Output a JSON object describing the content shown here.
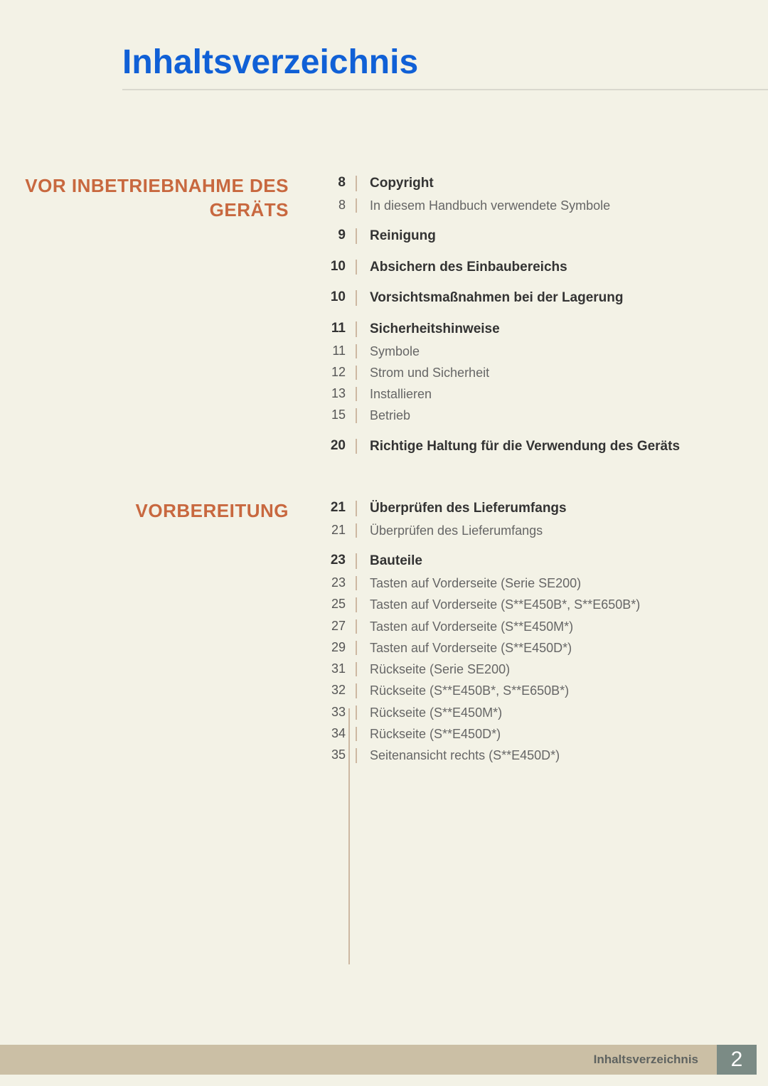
{
  "colors": {
    "page_bg": "#f3f2e6",
    "outer_bg": "#928d79",
    "title_color": "#1060d6",
    "section_color": "#c8683f",
    "vline_color": "#cdb8a2",
    "hr_color": "#d9d8ce",
    "text_bold": "#333333",
    "text_normal": "#666666",
    "footer_strip": "#cbbfa5",
    "footer_box": "#7b8b85",
    "footer_text": "#5f6360"
  },
  "typography": {
    "title_size": 48,
    "section_size": 26,
    "entry_bold_size": 19,
    "entry_normal_size": 18,
    "footer_label_size": 17,
    "footer_pagenum_size": 30
  },
  "title": "Inhaltsverzeichnis",
  "footer": {
    "label": "Inhaltsverzeichnis",
    "page": "2"
  },
  "sections": [
    {
      "heading": "VOR INBETRIEBNAHME DES GERÄTS",
      "groups": [
        {
          "entries": [
            {
              "page": "8",
              "label": "Copyright",
              "bold": true
            },
            {
              "page": "8",
              "label": "In diesem Handbuch verwendete Symbole",
              "bold": false
            }
          ]
        },
        {
          "entries": [
            {
              "page": "9",
              "label": "Reinigung",
              "bold": true
            }
          ]
        },
        {
          "entries": [
            {
              "page": "10",
              "label": "Absichern des Einbaubereichs",
              "bold": true
            }
          ]
        },
        {
          "entries": [
            {
              "page": "10",
              "label": "Vorsichtsmaßnahmen bei der Lagerung",
              "bold": true
            }
          ]
        },
        {
          "entries": [
            {
              "page": "11",
              "label": "Sicherheitshinweise",
              "bold": true
            },
            {
              "page": "11",
              "label": "Symbole",
              "bold": false
            },
            {
              "page": "12",
              "label": "Strom und Sicherheit",
              "bold": false
            },
            {
              "page": "13",
              "label": "Installieren",
              "bold": false
            },
            {
              "page": "15",
              "label": "Betrieb",
              "bold": false
            }
          ]
        },
        {
          "entries": [
            {
              "page": "20",
              "label": "Richtige Haltung für die Verwendung des Geräts",
              "bold": true
            }
          ]
        }
      ]
    },
    {
      "heading": "VORBEREITUNG",
      "groups": [
        {
          "entries": [
            {
              "page": "21",
              "label": "Überprüfen des Lieferumfangs",
              "bold": true
            },
            {
              "page": "21",
              "label": "Überprüfen des Lieferumfangs",
              "bold": false
            }
          ]
        },
        {
          "entries": [
            {
              "page": "23",
              "label": "Bauteile",
              "bold": true
            },
            {
              "page": "23",
              "label": "Tasten auf Vorderseite (Serie SE200)",
              "bold": false
            },
            {
              "page": "25",
              "label": "Tasten auf Vorderseite (S**E450B*, S**E650B*)",
              "bold": false
            },
            {
              "page": "27",
              "label": "Tasten auf Vorderseite (S**E450M*)",
              "bold": false
            },
            {
              "page": "29",
              "label": "Tasten auf Vorderseite (S**E450D*)",
              "bold": false
            },
            {
              "page": "31",
              "label": "Rückseite (Serie SE200)",
              "bold": false
            },
            {
              "page": "32",
              "label": "Rückseite (S**E450B*, S**E650B*)",
              "bold": false
            },
            {
              "page": "33",
              "label": "Rückseite (S**E450M*)",
              "bold": false
            },
            {
              "page": "34",
              "label": "Rückseite (S**E450D*)",
              "bold": false
            },
            {
              "page": "35",
              "label": "Seitenansicht rechts (S**E450D*)",
              "bold": false
            }
          ]
        }
      ]
    }
  ]
}
